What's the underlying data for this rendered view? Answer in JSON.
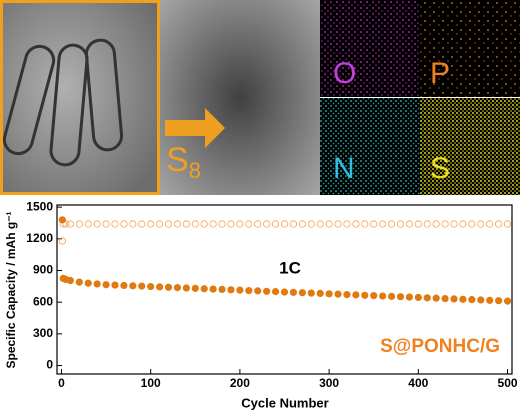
{
  "chart_data": {
    "type": "scatter",
    "x_label": "Cycle Number",
    "y_label": "Specific Capacity / mAh g⁻¹",
    "annotations": [
      "1C",
      "S@PONHC/G"
    ],
    "x": [
      1,
      2,
      5,
      10,
      20,
      30,
      40,
      50,
      60,
      70,
      80,
      90,
      100,
      110,
      120,
      130,
      140,
      150,
      160,
      170,
      180,
      190,
      200,
      210,
      220,
      230,
      240,
      250,
      260,
      270,
      280,
      290,
      300,
      310,
      320,
      330,
      340,
      350,
      360,
      370,
      380,
      390,
      400,
      410,
      420,
      430,
      440,
      450,
      460,
      470,
      480,
      490,
      500
    ],
    "series": [
      {
        "color": "#f5a050",
        "filled": false,
        "values": [
          1180,
          1340,
          1340,
          1340,
          1340,
          1340,
          1340,
          1340,
          1340,
          1340,
          1340,
          1340,
          1340,
          1340,
          1340,
          1340,
          1340,
          1340,
          1340,
          1340,
          1340,
          1340,
          1340,
          1340,
          1340,
          1340,
          1340,
          1340,
          1340,
          1340,
          1340,
          1340,
          1340,
          1340,
          1340,
          1340,
          1340,
          1340,
          1340,
          1340,
          1340,
          1340,
          1340,
          1340,
          1340,
          1340,
          1340,
          1340,
          1340,
          1340,
          1340,
          1340,
          1340
        ]
      },
      {
        "color": "#e07a10",
        "filled": true,
        "values": [
          1380,
          825,
          815,
          805,
          790,
          780,
          772,
          765,
          762,
          758,
          755,
          752,
          748,
          745,
          741,
          738,
          734,
          731,
          727,
          724,
          721,
          717,
          714,
          710,
          707,
          703,
          700,
          696,
          693,
          690,
          686,
          683,
          679,
          676,
          672,
          669,
          665,
          662,
          658,
          655,
          652,
          648,
          645,
          641,
          638,
          634,
          631,
          627,
          624,
          621,
          617,
          614,
          610
        ]
      }
    ],
    "xlim": [
      -5,
      505
    ],
    "xticks": [
      0,
      100,
      200,
      300,
      400,
      500
    ],
    "ylim": [
      -80,
      1520
    ],
    "yticks": [
      0,
      300,
      600,
      900,
      1200,
      1500
    ]
  },
  "images": {
    "map_labels": [
      "O",
      "P",
      "N",
      "S"
    ],
    "sulfur": {
      "text": "S",
      "subscript": "8"
    }
  }
}
